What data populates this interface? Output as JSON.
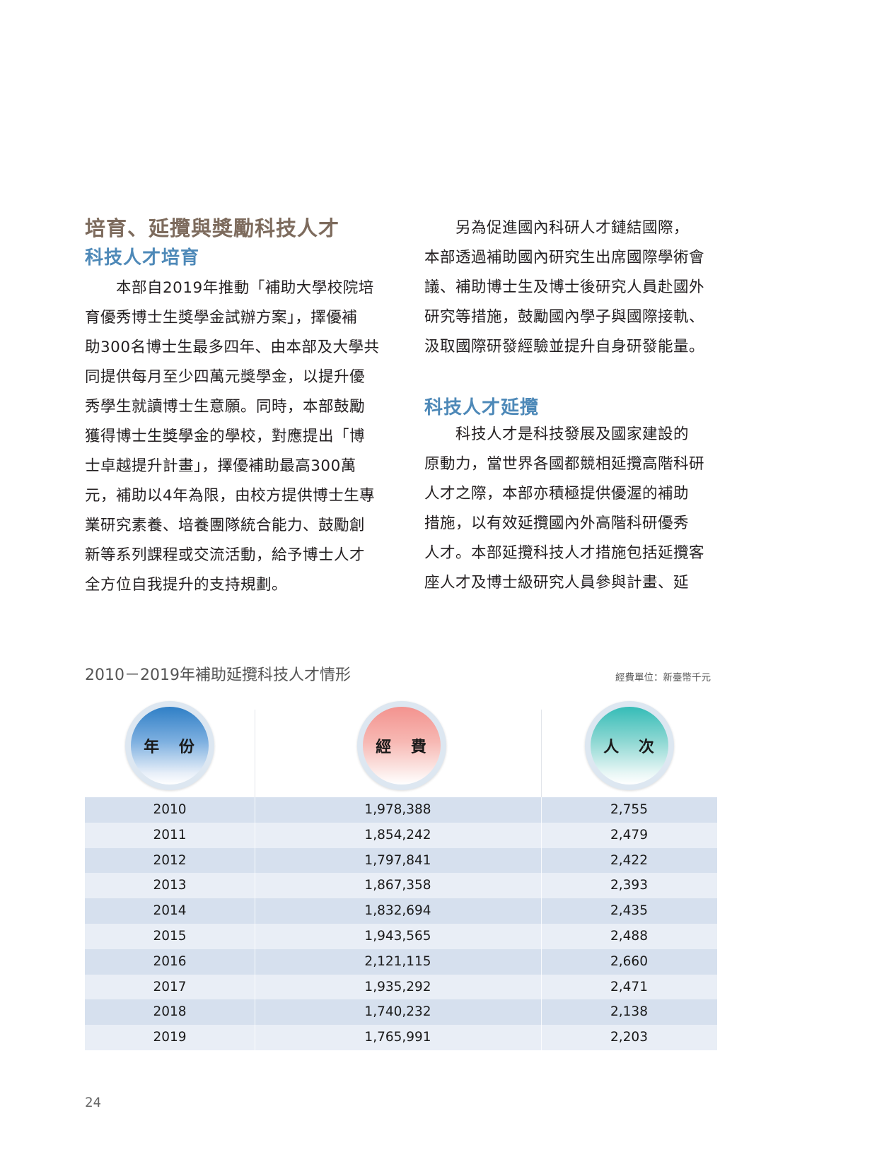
{
  "section": {
    "title": "培育、延攬與獎勵科技人才",
    "sub1": "科技人才培育",
    "left_lines": [
      "本部自2019年推動「補助大學校院培",
      "育優秀博士生獎學金試辦方案」，擇優補",
      "助300名博士生最多四年、由本部及大學共",
      "同提供每月至少四萬元獎學金，以提升優",
      "秀學生就讀博士生意願。同時，本部鼓勵",
      "獲得博士生獎學金的學校，對應提出「博",
      "士卓越提升計畫」，擇優補助最高300萬",
      "元，補助以4年為限，由校方提供博士生專",
      "業研究素養、培養團隊統合能力、鼓勵創",
      "新等系列課程或交流活動，給予博士人才",
      "全方位自我提升的支持規劃。"
    ],
    "right_lines_a": [
      "另為促進國內科研人才鏈結國際，",
      "本部透過補助國內研究生出席國際學術會",
      "議、補助博士生及博士後研究人員赴國外",
      "研究等措施，鼓勵國內學子與國際接軌、",
      "汲取國際研發經驗並提升自身研發能量。"
    ],
    "sub2": "科技人才延攬",
    "right_lines_b": [
      "科技人才是科技發展及國家建設的",
      "原動力，當世界各國都競相延攬高階科研",
      "人才之際，本部亦積極提供優渥的補助",
      "措施，以有效延攬國內外高階科研優秀",
      "人才。本部延攬科技人才措施包括延攬客",
      "座人才及博士級研究人員參與計畫、延"
    ]
  },
  "table": {
    "title": "2010－2019年補助延攬科技人才情形",
    "unit": "經費單位：新臺幣千元",
    "headers": [
      "年 份",
      "經 費",
      "人 次"
    ],
    "rows": [
      {
        "year": "2010",
        "funding": "1,978,388",
        "persons": "2,755"
      },
      {
        "year": "2011",
        "funding": "1,854,242",
        "persons": "2,479"
      },
      {
        "year": "2012",
        "funding": "1,797,841",
        "persons": "2,422"
      },
      {
        "year": "2013",
        "funding": "1,867,358",
        "persons": "2,393"
      },
      {
        "year": "2014",
        "funding": "1,832,694",
        "persons": "2,435"
      },
      {
        "year": "2015",
        "funding": "1,943,565",
        "persons": "2,488"
      },
      {
        "year": "2016",
        "funding": "2,121,115",
        "persons": "2,660"
      },
      {
        "year": "2017",
        "funding": "1,935,292",
        "persons": "2,471"
      },
      {
        "year": "2018",
        "funding": "1,740,232",
        "persons": "2,138"
      },
      {
        "year": "2019",
        "funding": "1,765,991",
        "persons": "2,203"
      }
    ]
  },
  "page_number": "24"
}
